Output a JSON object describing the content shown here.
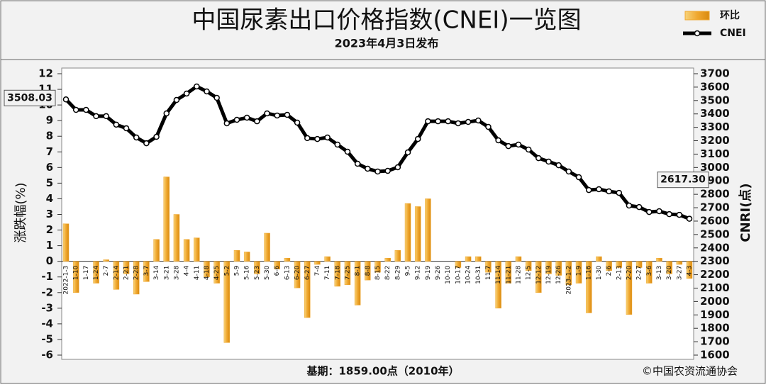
{
  "chart_data": {
    "type": "bar-line",
    "title": "中国尿素出口价格指数(CNEI)一览图",
    "subtitle": "2023年4月3日发布",
    "ylabel": "涨跌幅(%)",
    "y2label": "CNRI(点)",
    "footnote": "基期：1859.00点（2010年）",
    "source": "©中国农资流通协会",
    "categories": [
      "2022-1-3",
      "1-10",
      "1-17",
      "1-24",
      "2-7",
      "2-14",
      "2-21",
      "2-28",
      "3-7",
      "3-14",
      "3-21",
      "3-28",
      "4-4",
      "4-11",
      "4-18",
      "4-25",
      "5-2",
      "5-9",
      "5-16",
      "5-23",
      "5-30",
      "6-6",
      "6-13",
      "6-20",
      "6-27",
      "7-4",
      "7-11",
      "7-18",
      "7-25",
      "8-1",
      "8-8",
      "8-15",
      "8-22",
      "8-29",
      "9-5",
      "9-12",
      "9-19",
      "9-26",
      "10-10",
      "10-17",
      "10-24",
      "10-31",
      "11-7",
      "11-14",
      "11-21",
      "11-28",
      "12-5",
      "12-12",
      "12-19",
      "12-26",
      "2023-1-2",
      "1-9",
      "1-16",
      "1-30",
      "2-6",
      "2-13",
      "2-20",
      "2-27",
      "3-6",
      "3-13",
      "3-20",
      "3-27",
      "4-3"
    ],
    "series": [
      {
        "name": "环比",
        "type": "bar",
        "color": "#f0a830",
        "values": [
          2.4,
          -2.0,
          0,
          -1.4,
          0.1,
          -1.8,
          -0.8,
          -2.1,
          -1.3,
          1.4,
          5.4,
          3.0,
          1.4,
          1.5,
          -1.0,
          -1.4,
          -5.2,
          0.7,
          0.6,
          -0.8,
          1.8,
          -0.5,
          0.2,
          -1.7,
          -3.6,
          -0.2,
          0.3,
          -1.6,
          -1.5,
          -2.8,
          -1.2,
          -0.7,
          0.2,
          0.7,
          3.7,
          3.5,
          4.0,
          0,
          0,
          -0.4,
          0.3,
          0.3,
          -0.7,
          -3.0,
          -1.4,
          0.3,
          -0.6,
          -2.0,
          -0.8,
          -0.9,
          -1.5,
          -1.4,
          -3.3,
          0.3,
          -0.6,
          -0.4,
          -3.4,
          -0.4,
          -1.4,
          0.2,
          -0.8,
          -0.2,
          -1.1
        ]
      },
      {
        "name": "CNEI",
        "type": "line",
        "color": "#000000",
        "axis": "y2",
        "values": [
          3508.03,
          3430,
          3430,
          3383,
          3383,
          3320,
          3293,
          3224,
          3181,
          3229,
          3404,
          3504,
          3552,
          3605,
          3568,
          3520,
          3330,
          3356,
          3372,
          3345,
          3404,
          3388,
          3393,
          3335,
          3219,
          3213,
          3224,
          3171,
          3118,
          3028,
          2991,
          2970,
          2975,
          3002,
          3113,
          3213,
          3345,
          3345,
          3345,
          3330,
          3340,
          3351,
          3303,
          3203,
          3160,
          3171,
          3134,
          3070,
          3044,
          3017,
          2970,
          2928,
          2832,
          2838,
          2822,
          2811,
          2716,
          2705,
          2668,
          2674,
          2652,
          2647,
          2617.3
        ],
        "value_labels": [
          "3508.03",
          null,
          null,
          null,
          null,
          null,
          null,
          null,
          null,
          null,
          null,
          null,
          null,
          null,
          null,
          null,
          null,
          null,
          null,
          null,
          null,
          null,
          null,
          null,
          null,
          null,
          null,
          null,
          null,
          null,
          null,
          null,
          null,
          null,
          null,
          null,
          null,
          null,
          null,
          null,
          null,
          null,
          null,
          null,
          null,
          null,
          null,
          null,
          null,
          null,
          null,
          null,
          null,
          null,
          null,
          null,
          null,
          null,
          null,
          null,
          null,
          null,
          "2617.30"
        ]
      }
    ],
    "ylim": [
      -6,
      12
    ],
    "yticks": [
      -6,
      -5,
      -4,
      -3,
      -2,
      -1,
      0,
      1,
      2,
      3,
      4,
      5,
      6,
      7,
      8,
      9,
      10,
      11,
      12
    ],
    "y2lim": [
      1600,
      3700
    ],
    "y2ticks": [
      1600,
      1700,
      1800,
      1900,
      2000,
      2100,
      2200,
      2300,
      2400,
      2500,
      2600,
      2700,
      2800,
      2900,
      3000,
      3100,
      3200,
      3300,
      3400,
      3500,
      3600,
      3700
    ],
    "legend": "top-right"
  }
}
